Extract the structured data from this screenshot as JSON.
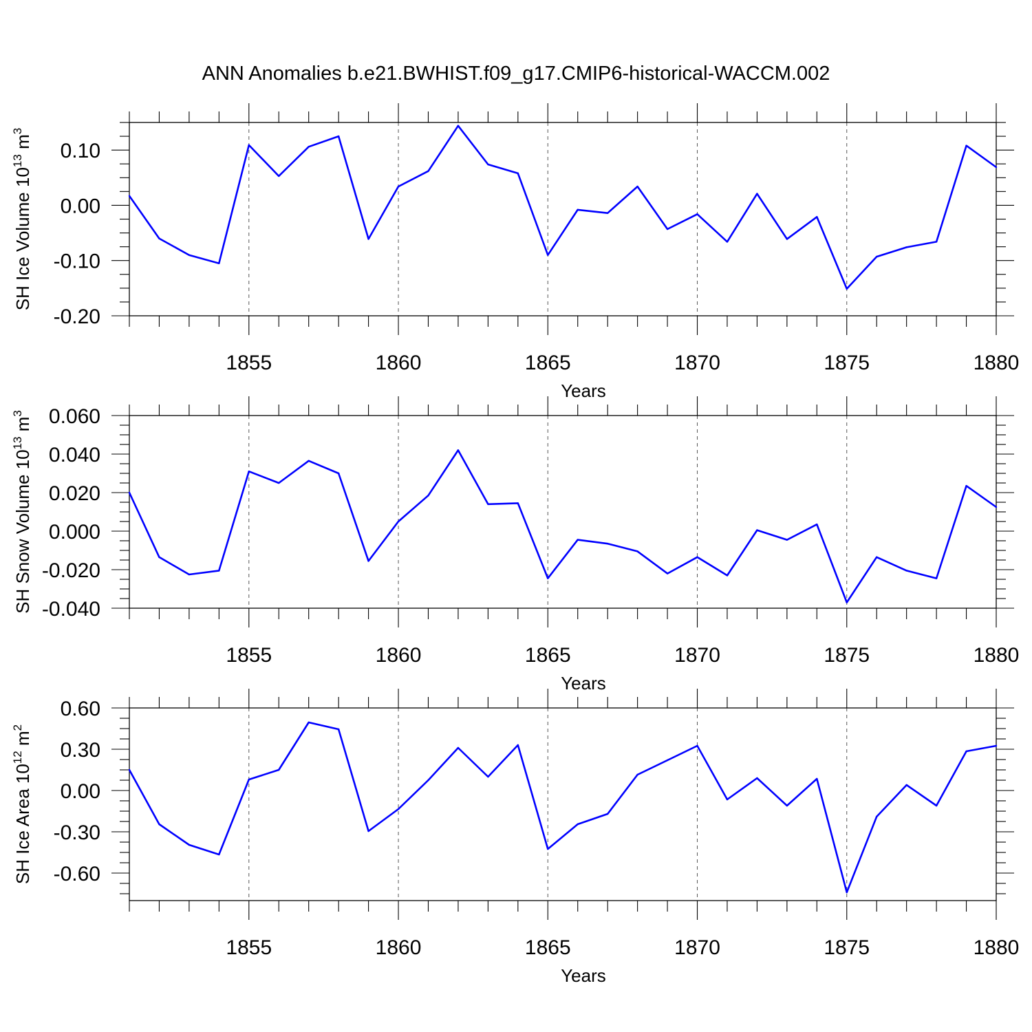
{
  "title": "ANN Anomalies b.e21.BWHIST.f09_g17.CMIP6-historical-WACCM.002",
  "colors": {
    "line": "#0000ff",
    "grid": "#555555",
    "axis": "#000000"
  },
  "chart_data": [
    {
      "type": "line",
      "ylabel": "SH Ice Volume 10",
      "ylabel_sup": "13",
      "ylabel_unit": "m",
      "ylabel_unit_sup": "3",
      "xlabel": "Years",
      "ylim": [
        -0.2,
        0.15
      ],
      "yticks": [
        -0.2,
        -0.1,
        0.0,
        0.1
      ],
      "ytick_labels": [
        "-0.20",
        "-0.10",
        "0.00",
        "0.10"
      ],
      "xlim": [
        1851,
        1880
      ],
      "xticks": [
        1855,
        1860,
        1865,
        1870,
        1875,
        1880
      ],
      "xtick_labels": [
        "1855",
        "1860",
        "1865",
        "1870",
        "1875",
        "1880"
      ],
      "grid": "vertical-dashed-at-major-x-ticks",
      "x": [
        1851,
        1852,
        1853,
        1854,
        1855,
        1856,
        1857,
        1858,
        1859,
        1860,
        1861,
        1862,
        1863,
        1864,
        1865,
        1866,
        1867,
        1868,
        1869,
        1870,
        1871,
        1872,
        1873,
        1874,
        1875,
        1876,
        1877,
        1878,
        1879,
        1880
      ],
      "values": [
        0.017,
        -0.06,
        -0.09,
        -0.105,
        0.109,
        0.053,
        0.106,
        0.125,
        -0.061,
        0.034,
        0.062,
        0.144,
        0.074,
        0.058,
        -0.09,
        -0.008,
        -0.014,
        0.034,
        -0.043,
        -0.016,
        -0.066,
        0.021,
        -0.061,
        -0.021,
        -0.151,
        -0.093,
        -0.076,
        -0.066,
        0.108,
        0.069
      ]
    },
    {
      "type": "line",
      "ylabel": "SH Snow Volume 10",
      "ylabel_sup": "13",
      "ylabel_unit": "m",
      "ylabel_unit_sup": "3",
      "xlabel": "Years",
      "ylim": [
        -0.04,
        0.06
      ],
      "yticks": [
        -0.04,
        -0.02,
        0.0,
        0.02,
        0.04,
        0.06
      ],
      "ytick_labels": [
        "-0.040",
        "-0.020",
        "0.000",
        "0.020",
        "0.040",
        "0.060"
      ],
      "xlim": [
        1851,
        1880
      ],
      "xticks": [
        1855,
        1860,
        1865,
        1870,
        1875,
        1880
      ],
      "xtick_labels": [
        "1855",
        "1860",
        "1865",
        "1870",
        "1875",
        "1880"
      ],
      "grid": "vertical-dashed-at-major-x-ticks",
      "x": [
        1851,
        1852,
        1853,
        1854,
        1855,
        1856,
        1857,
        1858,
        1859,
        1860,
        1861,
        1862,
        1863,
        1864,
        1865,
        1866,
        1867,
        1868,
        1869,
        1870,
        1871,
        1872,
        1873,
        1874,
        1875,
        1876,
        1877,
        1878,
        1879,
        1880
      ],
      "values": [
        0.02,
        -0.0135,
        -0.0225,
        -0.0205,
        0.031,
        0.025,
        0.0365,
        0.03,
        -0.0155,
        0.005,
        0.0185,
        0.042,
        0.014,
        0.0145,
        -0.0245,
        -0.0045,
        -0.0065,
        -0.0105,
        -0.022,
        -0.0135,
        -0.023,
        0.0005,
        -0.0045,
        0.0035,
        -0.037,
        -0.0135,
        -0.0205,
        -0.0245,
        0.0235,
        0.0125
      ]
    },
    {
      "type": "line",
      "ylabel": "SH Ice Area 10",
      "ylabel_sup": "12",
      "ylabel_unit": "m",
      "ylabel_unit_sup": "2",
      "xlabel": "Years",
      "ylim": [
        -0.8,
        0.6
      ],
      "yticks": [
        -0.6,
        -0.3,
        0.0,
        0.3,
        0.6
      ],
      "ytick_labels": [
        "-0.60",
        "-0.30",
        "0.00",
        "0.30",
        "0.60"
      ],
      "xlim": [
        1851,
        1880
      ],
      "xticks": [
        1855,
        1860,
        1865,
        1870,
        1875,
        1880
      ],
      "xtick_labels": [
        "1855",
        "1860",
        "1865",
        "1870",
        "1875",
        "1880"
      ],
      "grid": "vertical-dashed-at-major-x-ticks",
      "x": [
        1851,
        1852,
        1853,
        1854,
        1855,
        1856,
        1857,
        1858,
        1859,
        1860,
        1861,
        1862,
        1863,
        1864,
        1865,
        1866,
        1867,
        1868,
        1869,
        1870,
        1871,
        1872,
        1873,
        1874,
        1875,
        1876,
        1877,
        1878,
        1879,
        1880
      ],
      "values": [
        0.15,
        -0.245,
        -0.395,
        -0.465,
        0.08,
        0.15,
        0.495,
        0.445,
        -0.295,
        -0.135,
        0.075,
        0.31,
        0.1,
        0.33,
        -0.425,
        -0.245,
        -0.17,
        0.115,
        0.22,
        0.325,
        -0.065,
        0.09,
        -0.11,
        0.085,
        -0.74,
        -0.19,
        0.04,
        -0.11,
        0.285,
        0.325
      ]
    }
  ]
}
